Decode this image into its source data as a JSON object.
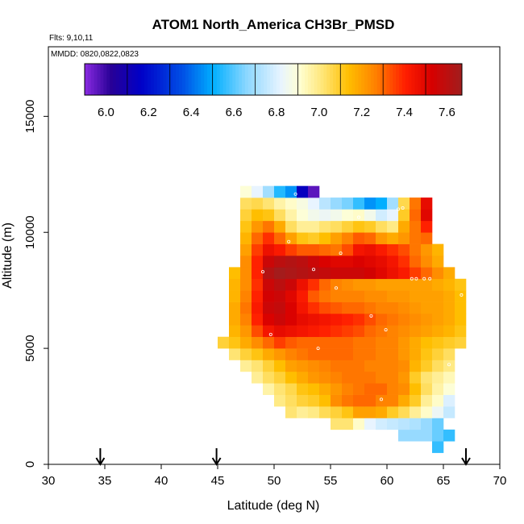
{
  "chart_data": {
    "type": "heatmap",
    "title": "ATOM1 North_America CH3Br_PMSD",
    "flights_label": "Flts: 9,10,11",
    "dates_label": "MMDD: 0820,0822,0823",
    "xlabel": "Latitude (deg N)",
    "ylabel": "Altitude (m)",
    "xlim": [
      30,
      70
    ],
    "ylim": [
      0,
      18000
    ],
    "x_ticks": [
      30,
      35,
      40,
      45,
      50,
      55,
      60,
      65,
      70
    ],
    "y_ticks": [
      0,
      5000,
      10000,
      15000
    ],
    "colorbar": {
      "min": 5.9,
      "max": 7.67,
      "ticks": [
        6.0,
        6.2,
        6.4,
        6.6,
        6.8,
        7.0,
        7.2,
        7.4,
        7.6
      ],
      "tick_labels": [
        "6.0",
        "6.2",
        "6.4",
        "6.6",
        "6.8",
        "7.0",
        "7.2",
        "7.4",
        "7.6"
      ]
    },
    "cell_size": {
      "lat_deg": 1,
      "alt_m": 500
    },
    "rows": [
      {
        "alt_base": 500,
        "start_lat": 64,
        "values": [
          6.56
        ]
      },
      {
        "alt_base": 1000,
        "start_lat": 61,
        "values": [
          6.68,
          6.68,
          6.68,
          6.62,
          6.56
        ]
      },
      {
        "alt_base": 1500,
        "start_lat": 55,
        "values": [
          7.02,
          7.02,
          6.92,
          6.82,
          6.78,
          6.76,
          6.74,
          6.72,
          6.68,
          6.62
        ]
      },
      {
        "alt_base": 2000,
        "start_lat": 51,
        "values": [
          7.02,
          6.98,
          7.0,
          7.05,
          7.08,
          7.12,
          7.2,
          7.2,
          7.18,
          7.1,
          7.05,
          6.98,
          6.92,
          6.84,
          6.76
        ]
      },
      {
        "alt_base": 2500,
        "start_lat": 50,
        "values": [
          7.0,
          7.04,
          7.08,
          7.1,
          7.14,
          7.24,
          7.28,
          7.3,
          7.3,
          7.26,
          7.26,
          7.18,
          7.1,
          6.98,
          6.92,
          6.8
        ]
      },
      {
        "alt_base": 3000,
        "start_lat": 49,
        "values": [
          6.96,
          7.02,
          7.06,
          7.12,
          7.14,
          7.18,
          7.22,
          7.26,
          7.28,
          7.3,
          7.3,
          7.26,
          7.24,
          7.14,
          7.04,
          6.96,
          6.9
        ]
      },
      {
        "alt_base": 3500,
        "start_lat": 48,
        "values": [
          6.98,
          7.04,
          7.08,
          7.14,
          7.18,
          7.22,
          7.24,
          7.26,
          7.28,
          7.28,
          7.28,
          7.26,
          7.26,
          7.22,
          7.1,
          7.02,
          6.98,
          6.94
        ]
      },
      {
        "alt_base": 4000,
        "start_lat": 47,
        "values": [
          6.98,
          7.02,
          7.08,
          7.14,
          7.2,
          7.22,
          7.24,
          7.26,
          7.28,
          7.28,
          7.28,
          7.26,
          7.26,
          7.26,
          7.24,
          7.16,
          7.1,
          7.04,
          7.0
        ]
      },
      {
        "alt_base": 4500,
        "start_lat": 46,
        "values": [
          7.02,
          7.08,
          7.12,
          7.18,
          7.22,
          7.26,
          7.28,
          7.3,
          7.3,
          7.3,
          7.3,
          7.28,
          7.28,
          7.26,
          7.26,
          7.22,
          7.18,
          7.12,
          7.08,
          7.04
        ]
      },
      {
        "alt_base": 5000,
        "start_lat": 45,
        "values": [
          7.08,
          7.12,
          7.18,
          7.24,
          7.3,
          7.36,
          7.32,
          7.3,
          7.3,
          7.3,
          7.3,
          7.3,
          7.28,
          7.28,
          7.26,
          7.26,
          7.22,
          7.18,
          7.14,
          7.12,
          7.1,
          7.08
        ]
      },
      {
        "alt_base": 5500,
        "start_lat": 46,
        "values": [
          7.16,
          7.22,
          7.34,
          7.44,
          7.48,
          7.46,
          7.44,
          7.42,
          7.4,
          7.38,
          7.36,
          7.34,
          7.3,
          7.28,
          7.26,
          7.24,
          7.22,
          7.2,
          7.18,
          7.16,
          7.12
        ]
      },
      {
        "alt_base": 6000,
        "start_lat": 46,
        "values": [
          7.18,
          7.26,
          7.4,
          7.52,
          7.56,
          7.52,
          7.48,
          7.46,
          7.44,
          7.42,
          7.4,
          7.38,
          7.34,
          7.3,
          7.28,
          7.26,
          7.24,
          7.22,
          7.2,
          7.18,
          7.14
        ]
      },
      {
        "alt_base": 6500,
        "start_lat": 46,
        "values": [
          7.18,
          7.28,
          7.42,
          7.56,
          7.58,
          7.52,
          7.44,
          7.38,
          7.34,
          7.32,
          7.3,
          7.3,
          7.28,
          7.26,
          7.26,
          7.24,
          7.22,
          7.2,
          7.2,
          7.18,
          7.14
        ]
      },
      {
        "alt_base": 7000,
        "start_lat": 46,
        "values": [
          7.16,
          7.26,
          7.4,
          7.54,
          7.56,
          7.5,
          7.42,
          7.32,
          7.28,
          7.26,
          7.26,
          7.26,
          7.24,
          7.24,
          7.22,
          7.22,
          7.2,
          7.2,
          7.2,
          7.18,
          7.14
        ]
      },
      {
        "alt_base": 7500,
        "start_lat": 46,
        "values": [
          7.16,
          7.24,
          7.38,
          7.56,
          7.6,
          7.56,
          7.46,
          7.38,
          7.3,
          7.26,
          7.24,
          7.22,
          7.22,
          7.2,
          7.2,
          7.2,
          7.2,
          7.2,
          7.18,
          7.16,
          7.12
        ]
      },
      {
        "alt_base": 8000,
        "start_lat": 46,
        "values": [
          7.14,
          7.24,
          7.4,
          7.62,
          7.66,
          7.64,
          7.62,
          7.6,
          7.58,
          7.56,
          7.56,
          7.56,
          7.54,
          7.5,
          7.46,
          7.42,
          7.36,
          7.3,
          7.24,
          7.18
        ]
      },
      {
        "alt_base": 8500,
        "start_lat": 47,
        "values": [
          7.24,
          7.4,
          7.56,
          7.6,
          7.62,
          7.6,
          7.56,
          7.52,
          7.5,
          7.5,
          7.52,
          7.5,
          7.48,
          7.44,
          7.38,
          7.3,
          7.24,
          7.18
        ]
      },
      {
        "alt_base": 9000,
        "start_lat": 47,
        "values": [
          7.2,
          7.36,
          7.46,
          7.42,
          7.36,
          7.32,
          7.32,
          7.3,
          7.28,
          7.34,
          7.44,
          7.46,
          7.42,
          7.38,
          7.34,
          7.28,
          7.22,
          7.16
        ]
      },
      {
        "alt_base": 9500,
        "start_lat": 47,
        "values": [
          7.16,
          7.3,
          7.38,
          7.3,
          7.2,
          7.12,
          7.1,
          7.14,
          7.2,
          7.26,
          7.32,
          7.3,
          7.22,
          7.18,
          7.22,
          7.28,
          7.3
        ]
      },
      {
        "alt_base": 10000,
        "start_lat": 47,
        "values": [
          7.12,
          7.22,
          7.28,
          7.18,
          7.04,
          6.98,
          6.98,
          7.02,
          7.04,
          7.08,
          7.12,
          7.1,
          7.04,
          7.0,
          7.18,
          7.28,
          7.4
        ]
      },
      {
        "alt_base": 10500,
        "start_lat": 47,
        "values": [
          7.08,
          7.14,
          7.12,
          7.04,
          6.96,
          6.9,
          6.86,
          6.84,
          6.86,
          6.9,
          6.92,
          6.86,
          6.78,
          6.82,
          7.1,
          7.3,
          7.5
        ]
      },
      {
        "alt_base": 11000,
        "start_lat": 47,
        "values": [
          7.04,
          7.06,
          7.02,
          6.96,
          6.92,
          6.88,
          6.82,
          6.74,
          6.68,
          6.64,
          6.56,
          6.46,
          6.5,
          6.7,
          7.06,
          7.28,
          7.48
        ]
      },
      {
        "alt_base": 11500,
        "start_lat": 47,
        "values": [
          6.9,
          6.82,
          6.7,
          6.54,
          6.46,
          6.14,
          5.96
        ]
      }
    ],
    "sample_points": [
      {
        "lat": 51.9,
        "alt": 11650
      },
      {
        "lat": 57.5,
        "alt": 10650
      },
      {
        "lat": 61.0,
        "alt": 11000
      },
      {
        "lat": 61.4,
        "alt": 11050
      },
      {
        "lat": 51.3,
        "alt": 9600
      },
      {
        "lat": 55.9,
        "alt": 9100
      },
      {
        "lat": 49.0,
        "alt": 8300
      },
      {
        "lat": 53.5,
        "alt": 8400
      },
      {
        "lat": 62.2,
        "alt": 8000
      },
      {
        "lat": 62.6,
        "alt": 8000
      },
      {
        "lat": 63.3,
        "alt": 8000
      },
      {
        "lat": 63.8,
        "alt": 8000
      },
      {
        "lat": 55.5,
        "alt": 7600
      },
      {
        "lat": 66.6,
        "alt": 7300
      },
      {
        "lat": 58.6,
        "alt": 6400
      },
      {
        "lat": 59.9,
        "alt": 5800
      },
      {
        "lat": 49.7,
        "alt": 5600
      },
      {
        "lat": 53.9,
        "alt": 5000
      },
      {
        "lat": 65.5,
        "alt": 4300
      },
      {
        "lat": 59.5,
        "alt": 2800
      }
    ],
    "markers": [
      {
        "lat": 34.6,
        "label": "down-arrow"
      },
      {
        "lat": 44.9,
        "label": "down-arrow"
      },
      {
        "lat": 67.0,
        "label": "down-arrow"
      }
    ]
  }
}
